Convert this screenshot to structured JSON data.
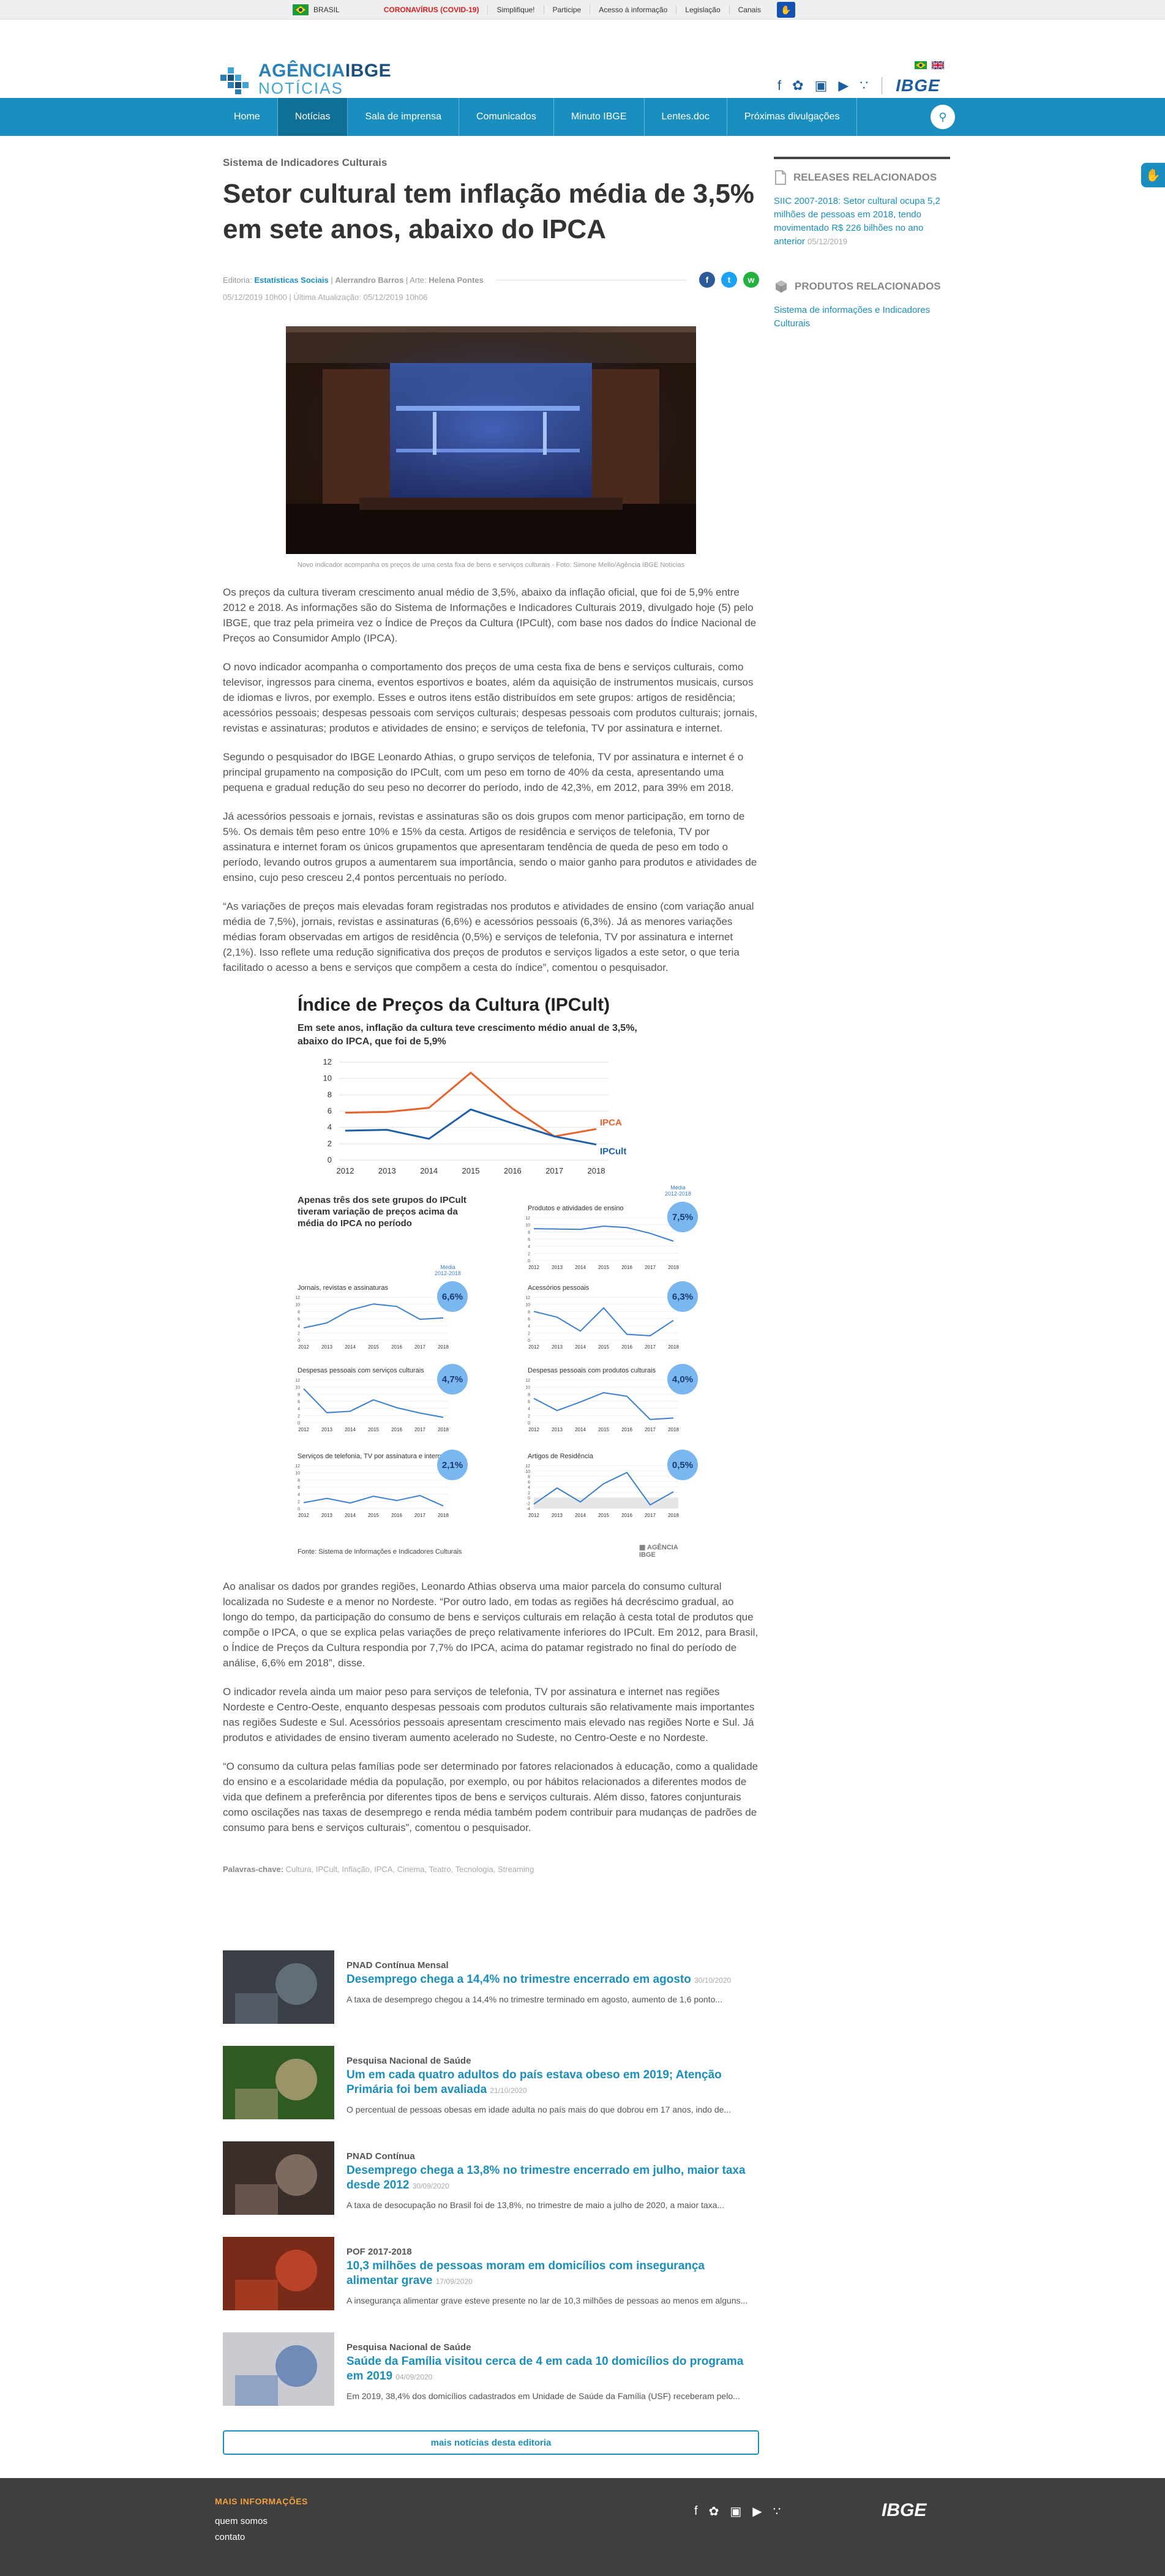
{
  "gov_bar": {
    "brasil": "BRASIL",
    "links": [
      "CORONAVÍRUS (COVID-19)",
      "Simplifique!",
      "Participe",
      "Acesso à informação",
      "Legislação",
      "Canais"
    ]
  },
  "logo": {
    "line1a": "AGÊNCIA",
    "line1b": "IBGE",
    "line2": "NOTÍCIAS"
  },
  "header_brand": "IBGE",
  "nav": {
    "items": [
      "Home",
      "Notícias",
      "Sala de imprensa",
      "Comunicados",
      "Minuto IBGE",
      "Lentes.doc",
      "Próximas divulgações"
    ],
    "active_index": 1
  },
  "article": {
    "kicker": "Sistema de Indicadores Culturais",
    "title": "Setor cultural tem inflação média de 3,5% em sete anos, abaixo do IPCA",
    "byline_prefix": "Editoria: ",
    "byline_editoria": "Estatísticas Sociais",
    "byline_sep1": " | ",
    "byline_author": "Alerrandro Barros",
    "byline_sep2": " | Arte: ",
    "byline_arte": "Helena Pontes",
    "date": "05/12/2019 10h00 | Última Atualização: 05/12/2019 10h06",
    "caption": "Novo indicador acompanha os preços de uma cesta fixa de bens e serviços culturais - Foto: Simone Mello/Agência IBGE Notícias",
    "paragraphs_top": [
      "Os preços da cultura tiveram crescimento anual médio de 3,5%, abaixo da inflação oficial, que foi de 5,9% entre 2012 e 2018. As informações são do Sistema de Informações e Indicadores Culturais 2019, divulgado hoje (5) pelo IBGE, que traz pela primeira vez o Índice de Preços da Cultura (IPCult), com base nos dados do Índice Nacional de Preços ao Consumidor Amplo (IPCA).",
      "O novo indicador acompanha o comportamento dos preços de uma cesta fixa de bens e serviços culturais, como televisor, ingressos para cinema, eventos esportivos e boates, além da aquisição de instrumentos musicais, cursos de idiomas e livros, por exemplo. Esses e outros itens estão distribuídos em sete grupos: artigos de residência; acessórios pessoais; despesas pessoais com serviços culturais; despesas pessoais com produtos culturais; jornais, revistas e assinaturas; produtos e atividades de ensino; e serviços de telefonia, TV por assinatura e internet.",
      "Segundo o pesquisador do IBGE Leonardo Athias, o grupo serviços de telefonia, TV por assinatura e internet é o principal grupamento na composição do IPCult, com um peso em torno de 40% da cesta, apresentando uma pequena e gradual redução do seu peso no decorrer do período, indo de 42,3%, em 2012, para 39% em 2018.",
      "Já acessórios pessoais e jornais, revistas e assinaturas são os dois grupos com menor participação, em torno de 5%. Os demais têm peso entre 10% e 15% da cesta. Artigos de residência e serviços de telefonia, TV por assinatura e internet foram os únicos grupamentos que apresentaram tendência de queda de peso em todo o período, levando outros grupos a aumentarem sua importância, sendo o maior ganho para produtos e atividades de ensino, cujo peso cresceu 2,4 pontos percentuais no período.",
      "“As variações de preços mais elevadas foram registradas nos produtos e atividades de ensino (com variação anual média de 7,5%), jornais, revistas e assinaturas (6,6%) e acessórios pessoais (6,3%). Já as menores variações médias foram observadas em artigos de residência (0,5%) e serviços de telefonia, TV por assinatura e internet (2,1%). Isso reflete uma redução significativa dos preços de produtos e serviços ligados a este setor, o que teria facilitado o acesso a bens e serviços que compõem a cesta do índice”, comentou o pesquisador."
    ],
    "paragraphs_bottom": [
      "Ao analisar os dados por grandes regiões, Leonardo Athias observa uma maior parcela do consumo cultural localizada no Sudeste e a menor no Nordeste. “Por outro lado, em todas as regiões há decréscimo gradual, ao longo do tempo, da participação do consumo de bens e serviços culturais em relação à cesta total de produtos que compõe o IPCA, o que se explica pelas variações de preço relativamente inferiores do IPCult. Em 2012, para Brasil, o Índice de Preços da Cultura respondia por 7,7% do IPCA, acima do patamar registrado no final do período de análise, 6,6% em 2018”, disse.",
      "O indicador revela ainda um maior peso para serviços de telefonia, TV por assinatura e internet nas regiões Nordeste e Centro-Oeste, enquanto despesas pessoais com produtos culturais são relativamente mais importantes nas regiões Sudeste e Sul. Acessórios pessoais apresentam crescimento mais elevado nas regiões Norte e Sul. Já produtos e atividades de ensino tiveram aumento acelerado no Sudeste, no Centro-Oeste e no Nordeste.",
      "“O consumo da cultura pelas famílias pode ser determinado por fatores relacionados à educação, como a qualidade do ensino e a escolaridade média da população, por exemplo, ou por hábitos relacionados a diferentes modos de vida que definem a preferência por diferentes tipos de bens e serviços culturais. Além disso, fatores conjunturais como oscilações nas taxas de desemprego e renda média também podem contribuir para mudanças de padrões de consumo para bens e serviços culturais”, comentou o pesquisador."
    ],
    "tags_label": "Palavras-chave: ",
    "tags": "Cultura, IPCult, Inflação, IPCA, Cinema, Teatro, Tecnologia, Streaming"
  },
  "chart_data": [
    {
      "type": "line",
      "title": "Índice de Preços da Cultura (IPCult)",
      "subtitle": "Em sete anos, inflação da cultura teve crescimento médio anual de 3,5%, abaixo do IPCA, que foi de 5,9%",
      "x": [
        "2012",
        "2013",
        "2014",
        "2015",
        "2016",
        "2017",
        "2018"
      ],
      "ylim": [
        0,
        12
      ],
      "yticks": [
        "0",
        "2",
        "4",
        "6",
        "8",
        "10",
        "12"
      ],
      "series": [
        {
          "name": "IPCA",
          "color": "#e8622c",
          "values": [
            5.8,
            5.9,
            6.4,
            10.7,
            6.3,
            2.9,
            3.8
          ]
        },
        {
          "name": "IPCult",
          "color": "#1f5fa8",
          "values": [
            3.6,
            3.7,
            2.6,
            6.2,
            4.5,
            2.9,
            1.9
          ]
        }
      ]
    },
    {
      "type": "line",
      "section_title": "Apenas três dos sete grupos do IPCult tiveram variação de preços acima da média do IPCA no período",
      "media_label": "Média\n2012-2018",
      "x": [
        "2012",
        "2013",
        "2014",
        "2015",
        "2016",
        "2017",
        "2018"
      ],
      "yticks": [
        "0",
        "2",
        "4",
        "6",
        "8",
        "10",
        "12"
      ],
      "panels": [
        {
          "name": "Produtos e atividades de ensino",
          "media": "7,5%",
          "values": [
            8.9,
            8.8,
            8.7,
            9.6,
            9.2,
            7.6,
            5.4
          ],
          "ylim": [
            0,
            12
          ]
        },
        {
          "name": "Jornais, revistas e assinaturas",
          "media": "6,6%",
          "values": [
            3.4,
            4.8,
            8.4,
            10.1,
            9.4,
            5.8,
            6.2
          ],
          "ylim": [
            0,
            12
          ]
        },
        {
          "name": "Acessórios pessoais",
          "media": "6,3%",
          "values": [
            8.0,
            6.4,
            2.5,
            9.0,
            1.6,
            1.2,
            5.5
          ],
          "ylim": [
            0,
            12
          ]
        },
        {
          "name": "Despesas pessoais com serviços culturais",
          "media": "4,7%",
          "values": [
            9.5,
            2.8,
            3.2,
            6.4,
            4.2,
            2.7,
            1.5
          ],
          "ylim": [
            0,
            12
          ]
        },
        {
          "name": "Despesas pessoais com produtos culturais",
          "media": "4,0%",
          "values": [
            6.8,
            3.4,
            5.8,
            8.4,
            7.4,
            0.9,
            1.3
          ],
          "ylim": [
            0,
            12
          ]
        },
        {
          "name": "Serviços de telefonia, TV por assinatura e internet",
          "media": "2,1%",
          "values": [
            1.6,
            2.8,
            1.5,
            3.4,
            2.2,
            3.6,
            0.7
          ],
          "ylim": [
            0,
            12
          ]
        },
        {
          "name": "Artigos de Residência",
          "media": "0,5%",
          "values": [
            -2.4,
            3.6,
            -1.6,
            5.2,
            9.4,
            -2.7,
            2.2
          ],
          "ylim": [
            -4,
            12
          ],
          "yticks": [
            "-4",
            "-2",
            "0",
            "2",
            "4",
            "6",
            "8",
            "10",
            "12"
          ]
        }
      ],
      "source": "Fonte: Sistema de Informações e Indicadores Culturais"
    }
  ],
  "sidebar": {
    "releases_title": "RELEASES RELACIONADOS",
    "release_link": "SIIC 2007-2018: Setor cultural ocupa 5,2 milhões de pessoas em 2018, tendo movimentado R$ 226 bilhões no ano anterior",
    "release_date": "05/12/2019",
    "products_title": "PRODUTOS RELACIONADOS",
    "product_link": "Sistema de informações e Indicadores Culturais"
  },
  "related": [
    {
      "kicker": "PNAD Contínua Mensal",
      "title": "Desemprego chega a 14,4% no trimestre encerrado em agosto",
      "date": "30/10/2020",
      "desc": "A taxa de desemprego chegou a 14,4% no trimestre terminado em agosto, aumento de 1,6 ponto..."
    },
    {
      "kicker": "Pesquisa Nacional de Saúde",
      "title": "Um em cada quatro adultos do país estava obeso em 2019; Atenção Primária foi bem avaliada",
      "date": "21/10/2020",
      "desc": "O percentual de pessoas obesas em idade adulta no país mais do que dobrou em 17 anos, indo de..."
    },
    {
      "kicker": "PNAD Contínua",
      "title": "Desemprego chega a 13,8% no trimestre encerrado em julho, maior taxa desde 2012",
      "date": "30/09/2020",
      "desc": "A taxa de desocupação no Brasil foi de 13,8%, no trimestre de maio a julho de 2020, a maior taxa..."
    },
    {
      "kicker": "POF 2017-2018",
      "title": "10,3 milhões de pessoas moram em domicílios com insegurança alimentar grave",
      "date": "17/09/2020",
      "desc": "A insegurança alimentar grave esteve presente no lar de 10,3 milhões de pessoas ao menos em alguns..."
    },
    {
      "kicker": "Pesquisa Nacional de Saúde",
      "title": "Saúde da Família visitou cerca de 4 em cada 10 domicílios do programa em 2019",
      "date": "04/09/2020",
      "desc": "Em 2019, 38,4% dos domicílios cadastrados em Unidade de Saúde da Família (USF) receberam pelo..."
    }
  ],
  "more_button": "mais notícias desta editoria",
  "footer": {
    "heading": "MAIS INFORMAÇÕES",
    "links": [
      "quem somos",
      "contato"
    ],
    "brand": "IBGE"
  }
}
